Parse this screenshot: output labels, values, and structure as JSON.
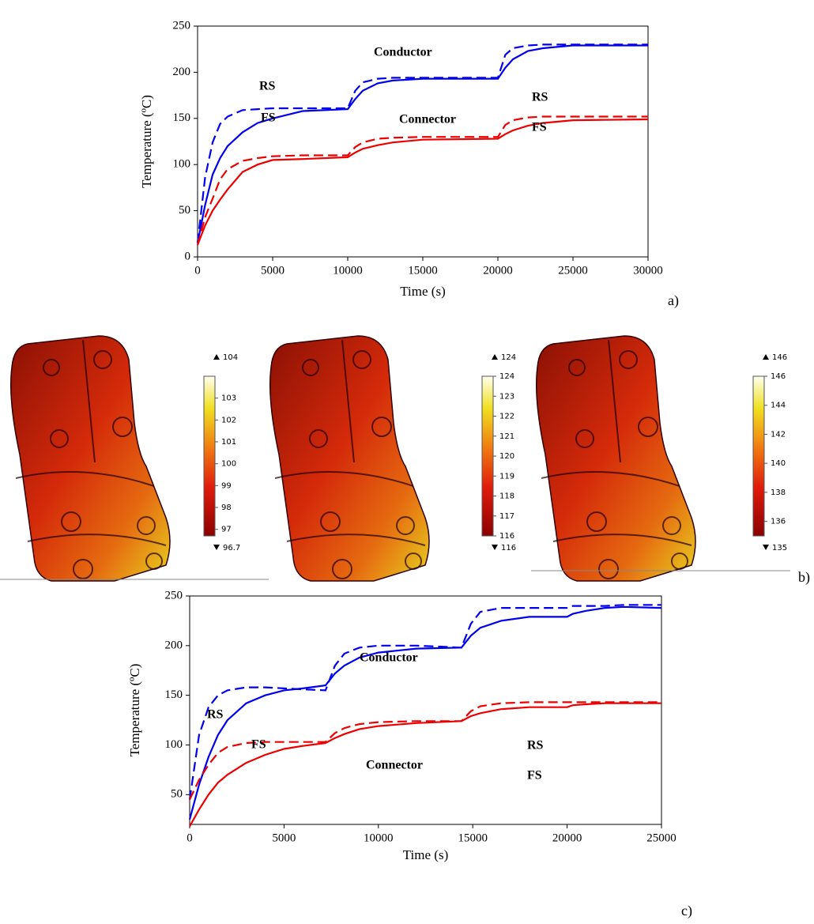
{
  "chart_data": [
    {
      "type": "line",
      "x_label": "Time (s)",
      "y_label": "Temperature (ºC)",
      "panel": "a)",
      "x": [
        0,
        500,
        1000,
        1500,
        2000,
        3000,
        4000,
        5000,
        7000,
        10000,
        10500,
        11000,
        12000,
        13000,
        15000,
        20000,
        20500,
        21000,
        22000,
        23000,
        25000,
        30000
      ],
      "series": [
        {
          "color": "#0000ee",
          "dashed": true,
          "values": [
            15,
            86,
            124,
            144,
            152,
            159,
            160,
            161,
            161,
            161,
            180,
            189,
            193,
            194,
            194,
            194,
            219,
            226,
            229,
            230,
            230,
            230
          ]
        },
        {
          "color": "#0000ee",
          "dashed": false,
          "values": [
            15,
            56,
            89,
            107,
            120,
            135,
            145,
            150,
            158,
            160,
            171,
            180,
            188,
            191,
            193,
            193,
            205,
            214,
            223,
            226,
            229,
            229
          ]
        },
        {
          "color": "#ee0000",
          "dashed": true,
          "values": [
            13,
            43,
            63,
            84,
            95,
            104,
            107,
            109,
            110,
            110,
            119,
            124,
            128,
            129,
            130,
            130,
            143,
            148,
            151,
            152,
            152,
            152
          ]
        },
        {
          "color": "#ee0000",
          "dashed": false,
          "values": [
            13,
            34,
            50,
            62,
            73,
            92,
            100,
            105,
            106,
            108,
            113,
            117,
            121,
            124,
            127,
            128,
            133,
            137,
            142,
            145,
            148,
            149
          ]
        }
      ],
      "annotations": [
        "Conductor",
        "RS",
        "FS",
        "Connector",
        "RS",
        "FS"
      ],
      "xlim": [
        0,
        30000
      ],
      "xticks": [
        0,
        5000,
        10000,
        15000,
        20000,
        25000,
        30000
      ],
      "ylim": [
        0,
        250
      ],
      "yticks": [
        0,
        50,
        100,
        150,
        200,
        250
      ]
    },
    {
      "type": "line",
      "x_label": "Time (s)",
      "y_label": "Temperature (ºC)",
      "panel": "c)",
      "x": [
        0,
        500,
        1000,
        1500,
        2000,
        3000,
        4000,
        5000,
        6000,
        7200,
        7700,
        8200,
        9000,
        10000,
        12000,
        14400,
        14900,
        15400,
        16500,
        18000,
        20000,
        20300,
        21000,
        22000,
        23000,
        25000
      ],
      "series": [
        {
          "color": "#0000ee",
          "dashed": true,
          "values": [
            45,
            110,
            138,
            150,
            155,
            158,
            158,
            157,
            156,
            155,
            180,
            192,
            198,
            200,
            200,
            198,
            222,
            234,
            238,
            238,
            238,
            240,
            240,
            240,
            241,
            241
          ]
        },
        {
          "color": "#0000ee",
          "dashed": false,
          "values": [
            25,
            60,
            88,
            110,
            125,
            142,
            150,
            155,
            157,
            160,
            172,
            180,
            188,
            193,
            197,
            198,
            210,
            218,
            225,
            229,
            229,
            232,
            235,
            238,
            239,
            238
          ]
        },
        {
          "color": "#ee0000",
          "dashed": true,
          "values": [
            45,
            65,
            80,
            92,
            98,
            102,
            103,
            103,
            103,
            103,
            112,
            117,
            121,
            123,
            124,
            124,
            134,
            139,
            142,
            143,
            143,
            143,
            143,
            143,
            143,
            143
          ]
        },
        {
          "color": "#ee0000",
          "dashed": false,
          "values": [
            18,
            35,
            50,
            62,
            70,
            82,
            90,
            96,
            99,
            102,
            107,
            111,
            116,
            119,
            122,
            124,
            129,
            132,
            136,
            138,
            138,
            140,
            141,
            142,
            142,
            142
          ]
        }
      ],
      "annotations": [
        "Conductor",
        "RS",
        "FS",
        "Connector",
        "RS",
        "FS"
      ],
      "xlim": [
        0,
        25000
      ],
      "xticks": [
        0,
        5000,
        10000,
        15000,
        20000,
        25000
      ],
      "ylim": [
        20,
        250
      ],
      "yticks": [
        50,
        100,
        150,
        200,
        250
      ]
    }
  ],
  "panel_b": {
    "label": "b)",
    "colorbars": [
      {
        "max": 104,
        "min": 96.7,
        "ticks": [
          97,
          98,
          99,
          100,
          101,
          102,
          103
        ]
      },
      {
        "max": 124,
        "min": 116,
        "ticks": [
          116,
          117,
          118,
          119,
          120,
          121,
          122,
          123,
          124
        ]
      },
      {
        "max": 146,
        "min": 135,
        "ticks": [
          136,
          138,
          140,
          142,
          144,
          146
        ]
      }
    ]
  }
}
